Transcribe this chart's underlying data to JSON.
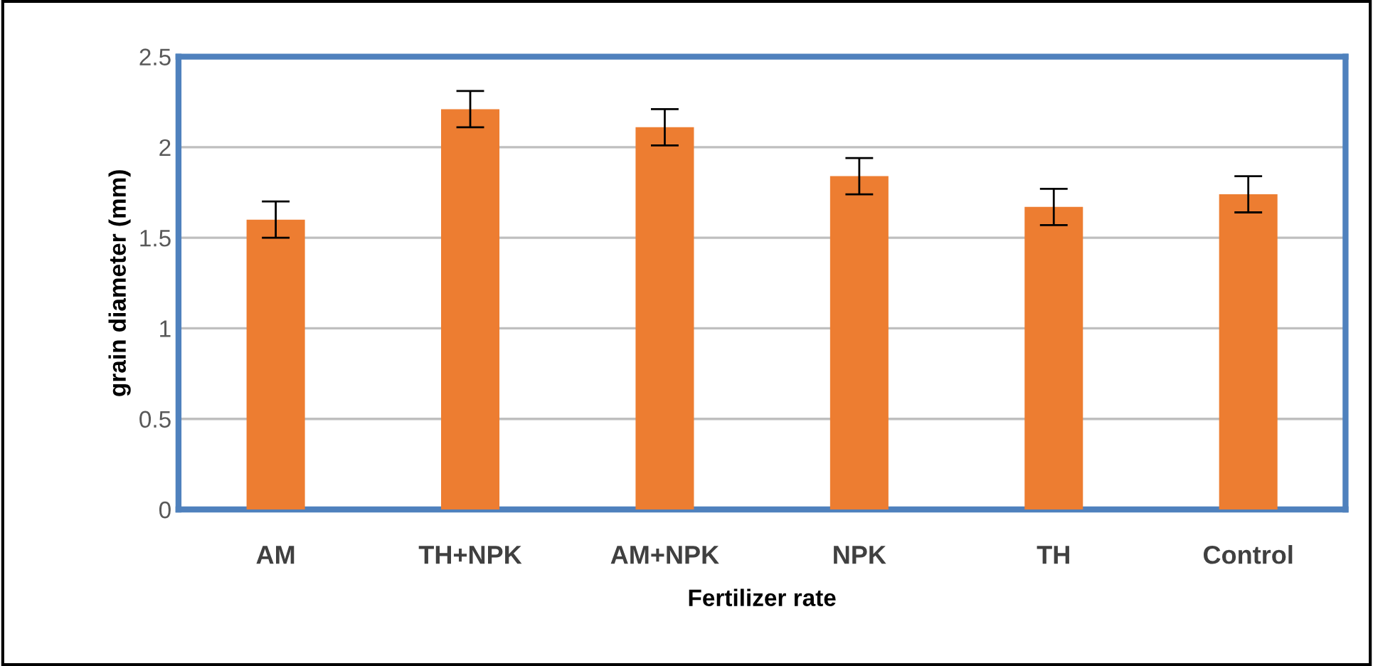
{
  "chart_data": {
    "type": "bar",
    "xlabel": "Fertilizer rate",
    "ylabel": "grain diameter (mm)",
    "categories": [
      "AM",
      "TH+NPK",
      "AM+NPK",
      "NPK",
      "TH",
      "Control"
    ],
    "values": [
      1.6,
      2.21,
      2.11,
      1.84,
      1.67,
      1.74
    ],
    "errors": [
      0.1,
      0.1,
      0.1,
      0.1,
      0.1,
      0.1
    ],
    "color": "#ed7d31",
    "ylim": [
      0,
      2.5
    ],
    "yticks": [
      0,
      0.5,
      1,
      1.5,
      2,
      2.5
    ],
    "grid": "y",
    "legend": false
  }
}
